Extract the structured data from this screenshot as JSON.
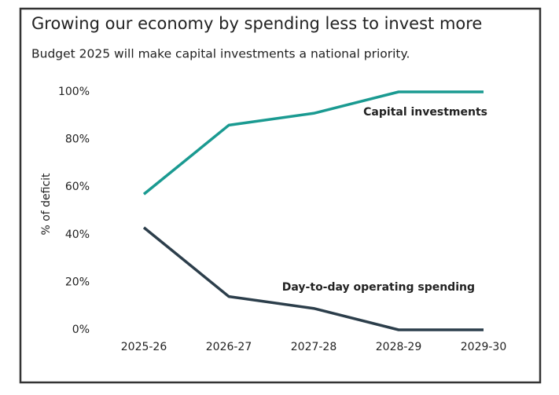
{
  "chart_data": {
    "type": "line",
    "title": "Growing our economy by spending less to invest more",
    "subtitle": "Budget 2025 will make capital investments a national priority.",
    "y_label": "% of deficit",
    "categories": [
      "2025-26",
      "2026-27",
      "2027-28",
      "2028-29",
      "2029-30"
    ],
    "series": [
      {
        "name": "Capital investments",
        "color": "#1a9a91",
        "values": [
          57,
          86,
          91,
          100,
          100
        ]
      },
      {
        "name": "Day-to-day operating spending",
        "color": "#2c3e4b",
        "values": [
          43,
          14,
          9,
          0,
          0
        ]
      }
    ],
    "ylim": [
      0,
      100
    ],
    "yticks": [
      {
        "value": 0,
        "label": "0%"
      },
      {
        "value": 20,
        "label": "20%"
      },
      {
        "value": 40,
        "label": "40%"
      },
      {
        "value": 60,
        "label": "60%"
      },
      {
        "value": 80,
        "label": "80%"
      },
      {
        "value": 100,
        "label": "100%"
      }
    ],
    "grid": false
  }
}
